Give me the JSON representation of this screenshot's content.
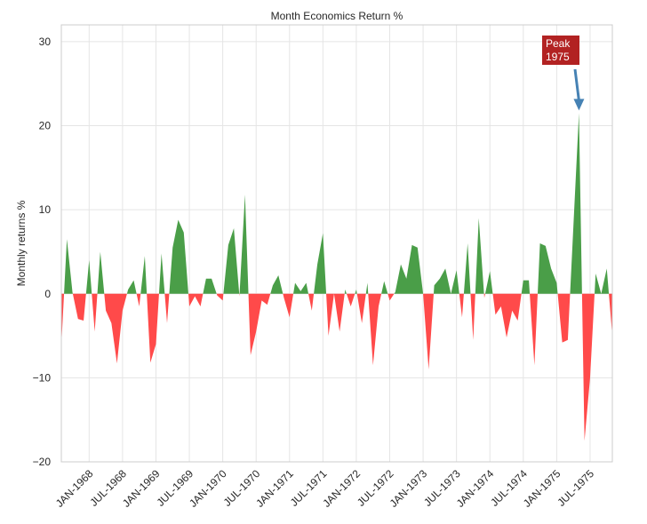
{
  "chart_data": {
    "type": "area",
    "title": "Month Economics Return %",
    "xlabel": "",
    "ylabel": "Monthly returns %",
    "ylim": [
      -20,
      32
    ],
    "yticks": [
      30,
      20,
      10,
      0,
      -10,
      -20
    ],
    "ytick_labels": [
      "30",
      "20",
      "10",
      "0",
      "−10",
      "−20"
    ],
    "grid": true,
    "legend": null,
    "positive_color": "#4a9e48",
    "negative_color": "#ff4a4a",
    "x_start": "AUG-1967",
    "xtick_labels": [
      "JAN-1968",
      "JUL-1968",
      "JAN-1969",
      "JUL-1969",
      "JAN-1970",
      "JUL-1970",
      "JAN-1971",
      "JUL-1971",
      "JAN-1972",
      "JUL-1972",
      "JAN-1973",
      "JUL-1973",
      "JAN-1974",
      "JUL-1974",
      "JAN-1975",
      "JUL-1975"
    ],
    "xtick_month_index": [
      5,
      11,
      17,
      23,
      29,
      35,
      41,
      47,
      53,
      59,
      65,
      71,
      77,
      83,
      89,
      95
    ],
    "values": [
      -6.2,
      6.5,
      0.2,
      -3.0,
      -3.2,
      4.0,
      -4.5,
      5.0,
      -2.0,
      -3.5,
      -8.3,
      -2.0,
      0.5,
      1.6,
      -1.5,
      4.5,
      -8.2,
      -6.0,
      4.8,
      -3.5,
      5.5,
      8.8,
      7.3,
      -1.5,
      -0.3,
      -1.5,
      1.8,
      1.8,
      -0.2,
      -0.8,
      5.8,
      7.8,
      -0.3,
      11.8,
      -7.3,
      -4.5,
      -0.8,
      -1.3,
      1.0,
      2.2,
      -0.5,
      -2.8,
      1.3,
      0.3,
      1.3,
      -2.0,
      3.5,
      7.2,
      -5.0,
      0.0,
      -4.5,
      0.5,
      -1.5,
      0.5,
      -3.5,
      1.3,
      -8.5,
      -1.5,
      1.5,
      -0.8,
      0.2,
      3.5,
      1.8,
      5.8,
      5.5,
      0.0,
      -9.0,
      1.0,
      1.8,
      3.0,
      0.0,
      2.8,
      -2.8,
      6.0,
      -5.5,
      9.0,
      -0.5,
      2.7,
      -2.5,
      -1.5,
      -5.2,
      -2.0,
      -3.2,
      1.6,
      1.6,
      -8.5,
      6.0,
      5.7,
      3.0,
      1.3,
      -5.8,
      -5.5,
      8.0,
      21.5,
      -17.5,
      -10.0,
      2.4,
      0.0,
      3.0,
      -5.0
    ],
    "annotation": {
      "text_line1": "Peak",
      "text_line2": "1975",
      "box_color": "#b22222",
      "arrow_color": "#4682b4",
      "point_month_index": 93,
      "point_value": 21.5
    }
  }
}
